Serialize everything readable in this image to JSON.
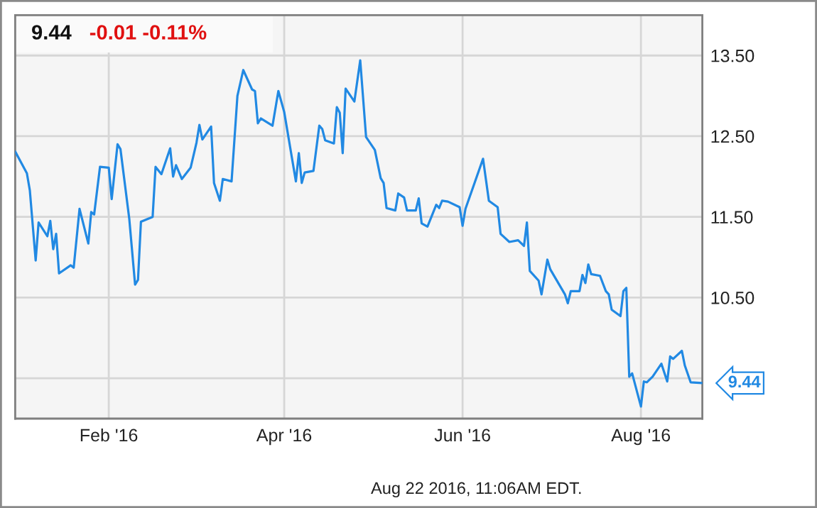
{
  "chart_data": {
    "type": "line",
    "title": "9.44",
    "subtitle": "-0.01 -0.11%",
    "x": [
      "2015-12-31",
      "2016-01-04",
      "2016-01-05",
      "2016-01-07",
      "2016-01-08",
      "2016-01-11",
      "2016-01-12",
      "2016-01-13",
      "2016-01-14",
      "2016-01-15",
      "2016-01-19",
      "2016-01-20",
      "2016-01-22",
      "2016-01-25",
      "2016-01-26",
      "2016-01-27",
      "2016-01-29",
      "2016-02-01",
      "2016-02-02",
      "2016-02-04",
      "2016-02-05",
      "2016-02-08",
      "2016-02-10",
      "2016-02-11",
      "2016-02-12",
      "2016-02-16",
      "2016-02-17",
      "2016-02-19",
      "2016-02-22",
      "2016-02-23",
      "2016-02-24",
      "2016-02-26",
      "2016-02-29",
      "2016-03-02",
      "2016-03-03",
      "2016-03-04",
      "2016-03-07",
      "2016-03-08",
      "2016-03-10",
      "2016-03-11",
      "2016-03-14",
      "2016-03-16",
      "2016-03-18",
      "2016-03-21",
      "2016-03-22",
      "2016-03-23",
      "2016-03-24",
      "2016-03-28",
      "2016-03-30",
      "2016-04-01",
      "2016-04-05",
      "2016-04-06",
      "2016-04-07",
      "2016-04-08",
      "2016-04-11",
      "2016-04-13",
      "2016-04-14",
      "2016-04-15",
      "2016-04-18",
      "2016-04-19",
      "2016-04-20",
      "2016-04-21",
      "2016-04-22",
      "2016-04-25",
      "2016-04-27",
      "2016-04-29",
      "2016-05-02",
      "2016-05-04",
      "2016-05-05",
      "2016-05-06",
      "2016-05-09",
      "2016-05-10",
      "2016-05-12",
      "2016-05-13",
      "2016-05-16",
      "2016-05-17",
      "2016-05-18",
      "2016-05-20",
      "2016-05-23",
      "2016-05-24",
      "2016-05-25",
      "2016-05-27",
      "2016-05-31",
      "2016-06-01",
      "2016-06-02",
      "2016-06-08",
      "2016-06-10",
      "2016-06-13",
      "2016-06-14",
      "2016-06-17",
      "2016-06-20",
      "2016-06-22",
      "2016-06-23",
      "2016-06-24",
      "2016-06-27",
      "2016-06-28",
      "2016-06-30",
      "2016-07-01",
      "2016-07-06",
      "2016-07-07",
      "2016-07-08",
      "2016-07-11",
      "2016-07-12",
      "2016-07-13",
      "2016-07-14",
      "2016-07-15",
      "2016-07-18",
      "2016-07-20",
      "2016-07-21",
      "2016-07-22",
      "2016-07-25",
      "2016-07-26",
      "2016-07-27",
      "2016-07-28",
      "2016-07-29",
      "2016-08-01",
      "2016-08-02",
      "2016-08-03",
      "2016-08-05",
      "2016-08-08",
      "2016-08-10",
      "2016-08-11",
      "2016-08-12",
      "2016-08-15",
      "2016-08-16",
      "2016-08-18",
      "2016-08-22"
    ],
    "series": [
      {
        "color": "#2189e3",
        "values": [
          12.31,
          12.04,
          11.83,
          10.96,
          11.43,
          11.26,
          11.45,
          11.1,
          11.29,
          10.8,
          10.9,
          10.87,
          11.6,
          11.17,
          11.56,
          11.53,
          12.12,
          12.11,
          11.72,
          12.4,
          12.34,
          11.48,
          10.66,
          10.72,
          11.44,
          11.5,
          12.12,
          12.03,
          12.35,
          12.0,
          12.14,
          11.97,
          12.11,
          12.42,
          12.64,
          12.46,
          12.62,
          11.92,
          11.7,
          11.97,
          11.94,
          13.0,
          13.32,
          13.08,
          13.06,
          12.66,
          12.72,
          12.63,
          13.06,
          12.8,
          11.94,
          12.29,
          11.92,
          12.05,
          12.07,
          12.63,
          12.59,
          12.45,
          12.41,
          12.86,
          12.79,
          12.29,
          13.09,
          12.93,
          13.44,
          12.49,
          12.33,
          11.98,
          11.92,
          11.61,
          11.58,
          11.79,
          11.74,
          11.58,
          11.58,
          11.73,
          11.42,
          11.38,
          11.65,
          11.61,
          11.7,
          11.69,
          11.62,
          11.39,
          11.6,
          12.22,
          11.7,
          11.62,
          11.29,
          11.19,
          11.21,
          11.14,
          11.43,
          10.83,
          10.71,
          10.54,
          10.97,
          10.85,
          10.54,
          10.43,
          10.58,
          10.58,
          10.78,
          10.68,
          10.91,
          10.79,
          10.77,
          10.58,
          10.54,
          10.35,
          10.27,
          10.58,
          10.62,
          9.52,
          9.56,
          9.15,
          9.46,
          9.45,
          9.52,
          9.68,
          9.46,
          9.77,
          9.74,
          9.84,
          9.66,
          9.45,
          9.44
        ]
      }
    ],
    "xlim": [
      "2015-12-31",
      "2016-08-22"
    ],
    "xticks": [
      {
        "value": "2016-02-01",
        "label": "Feb '16"
      },
      {
        "value": "2016-04-01",
        "label": "Apr '16"
      },
      {
        "value": "2016-06-01",
        "label": "Jun '16"
      },
      {
        "value": "2016-08-01",
        "label": "Aug '16"
      }
    ],
    "ylim": [
      9.0,
      14.0
    ],
    "yticks": [
      {
        "value": 9.5,
        "label": null
      },
      {
        "value": 10.5,
        "label": "10.50"
      },
      {
        "value": 11.5,
        "label": "11.50"
      },
      {
        "value": 12.5,
        "label": "12.50"
      },
      {
        "value": 13.5,
        "label": "13.50"
      }
    ],
    "grid": true,
    "annotations": [
      "Aug 22 2016, 11:06AM EDT.",
      {
        "text": "9.44",
        "x": "2016-08-22",
        "y": 9.44
      }
    ]
  }
}
